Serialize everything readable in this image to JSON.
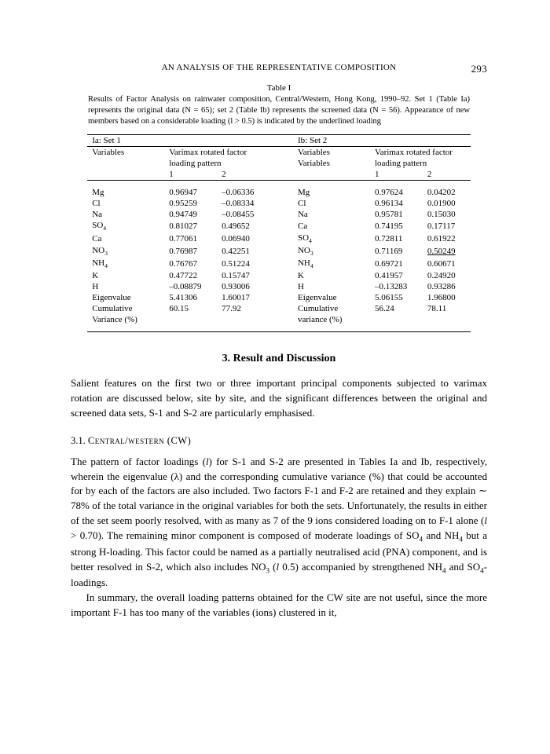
{
  "header": {
    "running_title": "AN ANALYSIS OF THE REPRESENTATIVE COMPOSITION",
    "page_number": "293"
  },
  "table": {
    "label": "Table I",
    "caption": "Results of Factor Analysis on rainwater composition, Central/Western, Hong Kong, 1990–92. Set 1 (Table Ia) represents the original data (N = 65); set 2 (Table Ib) represents the screened data (N = 56). Appearance of new members based on a considerable loading (l > 0.5) is indicated by the underlined loading",
    "left_heading": "Ia: Set 1",
    "right_heading": "Ib: Set 2",
    "col_variables": "Variables",
    "col_factor": "Varimax rotated factor",
    "col_loading": "loading pattern",
    "col_variables_r": "Variables",
    "sub1": "1",
    "sub2": "2",
    "rows": [
      {
        "vL": "Mg",
        "a": "0.96947",
        "b": "–0.06336",
        "vR": "Mg",
        "c": "0.97624",
        "d": "0.04202",
        "du": false
      },
      {
        "vL": "Cl",
        "a": "0.95259",
        "b": "–0.08334",
        "vR": "Cl",
        "c": "0.96134",
        "d": "0.01900",
        "du": false
      },
      {
        "vL": "Na",
        "a": "0.94749",
        "b": "–0.08455",
        "vR": "Na",
        "c": "0.95781",
        "d": "0.15030",
        "du": false
      },
      {
        "vL": "SO4",
        "a": "0.81027",
        "b": "0.49652",
        "vR": "Ca",
        "c": "0.74195",
        "d": "0.17117",
        "du": false
      },
      {
        "vL": "Ca",
        "a": "0.77061",
        "b": "0.06940",
        "vR": "SO4",
        "c": "0.72811",
        "d": "0.61922",
        "du": false
      },
      {
        "vL": "NO3",
        "a": "0.76987",
        "b": "0.42251",
        "vR": "NO3",
        "c": "0.71169",
        "d": "0.50249",
        "du": true
      },
      {
        "vL": "NH4",
        "a": "0.76767",
        "b": "0.51224",
        "vR": "NH4",
        "c": "0.69721",
        "d": "0.60671",
        "du": false
      },
      {
        "vL": "K",
        "a": "0.47722",
        "b": "0.15747",
        "vR": "K",
        "c": "0.41957",
        "d": "0.24920",
        "du": false
      },
      {
        "vL": "H",
        "a": "–0.08879",
        "b": "0.93006",
        "vR": "H",
        "c": "–0.13283",
        "d": "0.93286",
        "du": false
      },
      {
        "vL": "Eigenvalue",
        "a": "5.41306",
        "b": "1.60017",
        "vR": "Eigenvalue",
        "c": "5.06155",
        "d": "1.96800",
        "du": false
      },
      {
        "vL": "Cumulative",
        "a": "60.15",
        "b": "77.92",
        "vR": "Cumulative",
        "c": "56.24",
        "d": "78.11",
        "du": false
      },
      {
        "vL": "Variance (%)",
        "a": "",
        "b": "",
        "vR": "variance (%)",
        "c": "",
        "d": "",
        "du": false
      }
    ]
  },
  "section": {
    "heading": "3.  Result and Discussion",
    "para1": "Salient features on the first two or three important principal components subjected to varimax rotation are discussed below, site by site, and the significant differences between the original and screened data sets, S-1 and S-2 are particularly emphasised.",
    "subsection_num": "3.1.",
    "subsection_title": "Central/western (CW)",
    "para2a": "The pattern of factor loadings (",
    "para2b": ") for S-1 and S-2 are presented in Tables Ia and Ib, respectively, wherein the eigenvalue (λ) and the corresponding cumulative variance (%) that could be accounted for by each of the factors are also included. Two factors F-1 and F-2 are retained and they explain ∼ 78% of the total variance in the original variables for both the sets. Unfortunately, the results in either of the set seem poorly resolved, with as many as 7 of the 9 ions considered loading on to F-1 alone (",
    "para2c": " > 0.70). The remaining minor component is composed of moderate loadings of SO",
    "para2d": " and NH",
    "para2e": " but a strong H-loading. This factor could be named as a partially neutralised acid (PNA) component, and is better resolved in S-2, which also includes NO",
    "para2f": " (",
    "para2g": "   0.5) accompanied by strengthened NH",
    "para2h": " and SO",
    "para2i": "-loadings.",
    "para3": "In summary, the overall loading patterns obtained for the CW site are not useful, since the more important F-1 has too many of the variables (ions) clustered in it,"
  }
}
